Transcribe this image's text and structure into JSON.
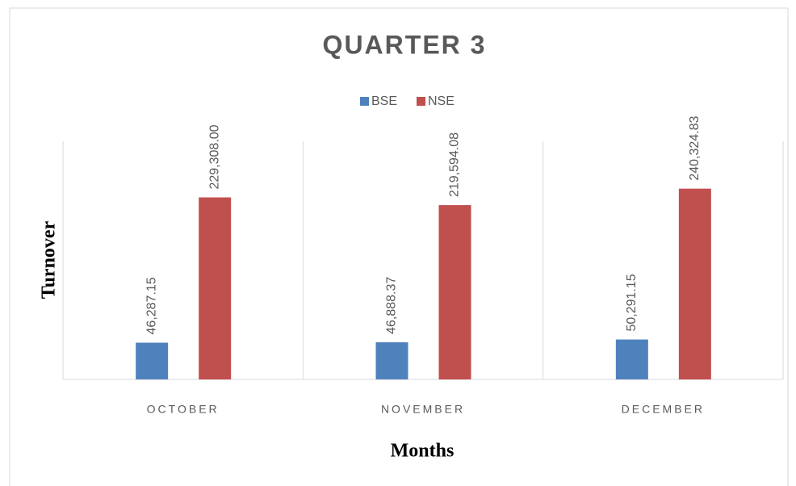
{
  "chart_data": {
    "type": "bar",
    "title": "QUARTER 3",
    "x_label": "Months",
    "y_label": "Turnover",
    "categories": [
      "OCTOBER",
      "NOVEMBER",
      "DECEMBER"
    ],
    "series": [
      {
        "name": "BSE",
        "color": "#4f81bd",
        "values": [
          46287.15,
          46888.37,
          50291.15
        ],
        "value_labels": [
          "46,287.15",
          "46,888.37",
          "50,291.15"
        ]
      },
      {
        "name": "NSE",
        "color": "#c0504d",
        "values": [
          229308.0,
          219594.08,
          240324.83
        ],
        "value_labels": [
          "229,308.00",
          "219,594.08",
          "240,324.83"
        ]
      }
    ],
    "ylim": [
      0,
      300000
    ],
    "legend": "top"
  }
}
